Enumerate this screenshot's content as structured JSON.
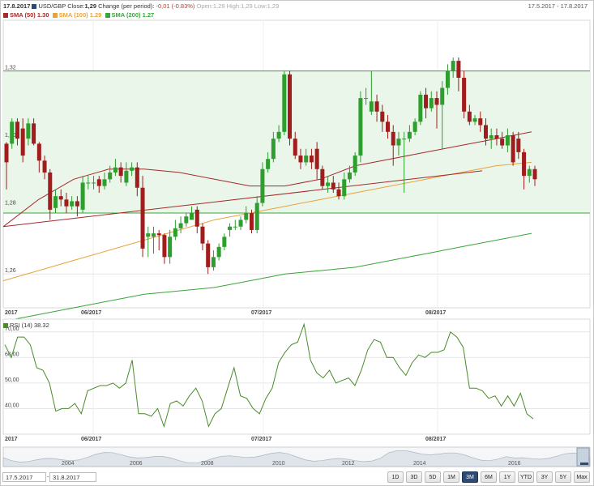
{
  "header": {
    "date": "17.8.2017",
    "symbol": "USD/GBP",
    "close_label": "Close:",
    "close_value": "1,29",
    "change_label": "Change (per period):",
    "change_value": "-0,01 (-0.83%)",
    "ohlc_text": "Open:1,29 High:1,29 Low:1,29",
    "date_range": "17.5.2017 - 17.8.2017",
    "sma50_label": "SMA (50) 1.30",
    "sma100_label": "SMA (100) 1.29",
    "sma200_label": "SMA (200) 1.27",
    "colors": {
      "symbol": "#2c4a73",
      "sma50": "#a52a2a",
      "sma100": "#e8a33d",
      "sma200": "#3aa53a"
    }
  },
  "rsi": {
    "label": "RSI (14) 38.32"
  },
  "controls": {
    "date_from": "17.5.2017",
    "separator": "-",
    "date_to": "31.8.2017",
    "buttons": [
      "1D",
      "3D",
      "5D",
      "1M",
      "3M",
      "6M",
      "1Y",
      "YTD",
      "3Y",
      "5Y",
      "Max"
    ],
    "active_button": "3M"
  },
  "navigator": {
    "year_labels": [
      "2004",
      "2006",
      "2008",
      "2010",
      "2012",
      "2014",
      "2016"
    ]
  },
  "chart_data": [
    {
      "type": "candlestick",
      "title": "USD/GBP",
      "ylim": [
        1.25,
        1.335
      ],
      "y_ticks": [
        "1,32",
        "1,30",
        "1,28",
        "1,26"
      ],
      "x_ticks": [
        "2017",
        "06/2017",
        "07/2017",
        "08/2017"
      ],
      "channel": [
        1.278,
        1.32
      ],
      "candles": [
        [
          1.2985,
          1.293,
          1.299,
          1.285
        ],
        [
          1.2985,
          1.305,
          1.306,
          1.297
        ],
        [
          1.305,
          1.3,
          1.306,
          1.298
        ],
        [
          1.303,
          1.295,
          1.306,
          1.293
        ],
        [
          1.3,
          1.3045,
          1.306,
          1.298
        ],
        [
          1.3045,
          1.2985,
          1.306,
          1.298
        ],
        [
          1.2985,
          1.2935,
          1.299,
          1.29
        ],
        [
          1.2935,
          1.29,
          1.295,
          1.288
        ],
        [
          1.29,
          1.279,
          1.291,
          1.276
        ],
        [
          1.2795,
          1.283,
          1.285,
          1.278
        ],
        [
          1.283,
          1.282,
          1.285,
          1.28
        ],
        [
          1.282,
          1.28,
          1.284,
          1.278
        ],
        [
          1.28,
          1.2815,
          1.283,
          1.279
        ],
        [
          1.2815,
          1.28,
          1.283,
          1.277
        ],
        [
          1.279,
          1.287,
          1.289,
          1.278
        ],
        [
          1.287,
          1.287,
          1.289,
          1.285
        ],
        [
          1.287,
          1.287,
          1.289,
          1.285
        ],
        [
          1.288,
          1.286,
          1.289,
          1.284
        ],
        [
          1.286,
          1.288,
          1.29,
          1.285
        ],
        [
          1.288,
          1.29,
          1.292,
          1.287
        ],
        [
          1.29,
          1.2915,
          1.294,
          1.289
        ],
        [
          1.2915,
          1.289,
          1.293,
          1.287
        ],
        [
          1.287,
          1.2905,
          1.293,
          1.286
        ],
        [
          1.2905,
          1.2915,
          1.293,
          1.289
        ],
        [
          1.2915,
          1.2855,
          1.293,
          1.283
        ],
        [
          1.2855,
          1.2675,
          1.289,
          1.265
        ],
        [
          1.271,
          1.272,
          1.274,
          1.265
        ],
        [
          1.271,
          1.272,
          1.274,
          1.266
        ],
        [
          1.272,
          1.2715,
          1.273,
          1.267
        ],
        [
          1.2715,
          1.265,
          1.272,
          1.263
        ],
        [
          1.265,
          1.271,
          1.273,
          1.263
        ],
        [
          1.271,
          1.2735,
          1.276,
          1.27
        ],
        [
          1.2735,
          1.275,
          1.277,
          1.272
        ],
        [
          1.275,
          1.277,
          1.278,
          1.274
        ],
        [
          1.276,
          1.278,
          1.28,
          1.276
        ],
        [
          1.279,
          1.274,
          1.28,
          1.272
        ],
        [
          1.274,
          1.269,
          1.275,
          1.267
        ],
        [
          1.269,
          1.262,
          1.27,
          1.26
        ],
        [
          1.262,
          1.265,
          1.267,
          1.261
        ],
        [
          1.265,
          1.268,
          1.269,
          1.264
        ],
        [
          1.268,
          1.271,
          1.272,
          1.267
        ],
        [
          1.273,
          1.274,
          1.275,
          1.271
        ],
        [
          1.274,
          1.274,
          1.276,
          1.273
        ],
        [
          1.274,
          1.276,
          1.277,
          1.273
        ],
        [
          1.276,
          1.278,
          1.28,
          1.275
        ],
        [
          1.278,
          1.273,
          1.279,
          1.272
        ],
        [
          1.273,
          1.281,
          1.283,
          1.272
        ],
        [
          1.281,
          1.291,
          1.293,
          1.28
        ],
        [
          1.291,
          1.294,
          1.296,
          1.29
        ],
        [
          1.294,
          1.3,
          1.302,
          1.293
        ],
        [
          1.3,
          1.302,
          1.304,
          1.299
        ],
        [
          1.302,
          1.319,
          1.32,
          1.301
        ],
        [
          1.319,
          1.3,
          1.32,
          1.298
        ],
        [
          1.3,
          1.295,
          1.302,
          1.294
        ],
        [
          1.295,
          1.293,
          1.297,
          1.291
        ],
        [
          1.293,
          1.295,
          1.297,
          1.292
        ],
        [
          1.295,
          1.293,
          1.297,
          1.291
        ],
        [
          1.297,
          1.291,
          1.299,
          1.288
        ],
        [
          1.291,
          1.286,
          1.292,
          1.285
        ],
        [
          1.286,
          1.287,
          1.289,
          1.284
        ],
        [
          1.287,
          1.285,
          1.289,
          1.284
        ],
        [
          1.285,
          1.283,
          1.287,
          1.282
        ],
        [
          1.283,
          1.288,
          1.29,
          1.282
        ],
        [
          1.288,
          1.29,
          1.292,
          1.287
        ],
        [
          1.29,
          1.295,
          1.296,
          1.289
        ],
        [
          1.295,
          1.312,
          1.314,
          1.293
        ],
        [
          1.312,
          1.312,
          1.315,
          1.31
        ],
        [
          1.308,
          1.311,
          1.32,
          1.307
        ],
        [
          1.311,
          1.308,
          1.313,
          1.305
        ],
        [
          1.308,
          1.305,
          1.31,
          1.302
        ],
        [
          1.305,
          1.302,
          1.307,
          1.3
        ],
        [
          1.302,
          1.298,
          1.304,
          1.292
        ],
        [
          1.298,
          1.3,
          1.302,
          1.295
        ],
        [
          1.3,
          1.3,
          1.302,
          1.284
        ],
        [
          1.3,
          1.302,
          1.304,
          1.299
        ],
        [
          1.302,
          1.305,
          1.306,
          1.301
        ],
        [
          1.305,
          1.313,
          1.314,
          1.304
        ],
        [
          1.313,
          1.309,
          1.315,
          1.306
        ],
        [
          1.309,
          1.312,
          1.314,
          1.308
        ],
        [
          1.312,
          1.31,
          1.314,
          1.303
        ],
        [
          1.31,
          1.315,
          1.317,
          1.297
        ],
        [
          1.315,
          1.32,
          1.322,
          1.313
        ],
        [
          1.32,
          1.323,
          1.324,
          1.318
        ],
        [
          1.323,
          1.318,
          1.324,
          1.314
        ],
        [
          1.318,
          1.308,
          1.32,
          1.306
        ],
        [
          1.308,
          1.305,
          1.31,
          1.304
        ],
        [
          1.305,
          1.306,
          1.307,
          1.304
        ],
        [
          1.306,
          1.304,
          1.308,
          1.302
        ],
        [
          1.304,
          1.3,
          1.306,
          1.298
        ],
        [
          1.3,
          1.301,
          1.303,
          1.297
        ],
        [
          1.301,
          1.3,
          1.303,
          1.298
        ],
        [
          1.3,
          1.298,
          1.302,
          1.297
        ],
        [
          1.298,
          1.301,
          1.303,
          1.296
        ],
        [
          1.301,
          1.293,
          1.302,
          1.292
        ],
        [
          1.3,
          1.296,
          1.302,
          1.294
        ],
        [
          1.296,
          1.289,
          1.297,
          1.285
        ],
        [
          1.289,
          1.291,
          1.292,
          1.287
        ],
        [
          1.291,
          1.288,
          1.292,
          1.286
        ]
      ],
      "series": [
        {
          "name": "SMA (50) 1.30",
          "color": "#a52a2a",
          "values": [
            1.274,
            1.282,
            1.288,
            1.291,
            1.291,
            1.29,
            1.288,
            1.286,
            1.286,
            1.288,
            1.292,
            1.294,
            1.296,
            1.298,
            1.3,
            1.302
          ]
        },
        {
          "name": "SMA (100) 1.29",
          "color": "#e8a33d",
          "values": [
            1.258,
            1.261,
            1.264,
            1.267,
            1.27,
            1.273,
            1.276,
            1.278,
            1.28,
            1.282,
            1.284,
            1.286,
            1.288,
            1.29,
            1.292,
            1.293
          ]
        },
        {
          "name": "SMA (200) 1.27",
          "color": "#3aa53a",
          "values": [
            1.246,
            1.248,
            1.25,
            1.252,
            1.254,
            1.255,
            1.256,
            1.258,
            1.26,
            1.261,
            1.262,
            1.264,
            1.266,
            1.268,
            1.27,
            1.272
          ]
        }
      ],
      "trendline": {
        "from": 1.274,
        "to": 1.2905,
        "color": "#a52a2a"
      }
    },
    {
      "type": "line",
      "title": "RSI (14) 38.32",
      "ylim": [
        30,
        75
      ],
      "y_ticks": [
        "70,00",
        "60,00",
        "50,00",
        "40,00"
      ],
      "x_ticks": [
        "2017",
        "06/2017",
        "07/2017",
        "08/2017"
      ],
      "series": [
        {
          "name": "RSI (14)",
          "color": "#4a8a2a",
          "values": [
            65,
            60,
            68,
            68,
            65,
            56,
            55,
            50,
            39,
            40,
            40,
            42,
            38,
            47,
            48,
            49,
            49,
            50,
            48,
            50,
            59,
            38,
            38,
            37,
            40,
            33,
            42,
            43,
            41,
            45,
            48,
            43,
            33,
            38,
            40,
            48,
            56,
            45,
            44,
            40,
            38,
            44,
            48,
            58,
            62,
            65,
            66,
            73,
            59,
            54,
            52,
            55,
            50,
            51,
            52,
            49,
            55,
            63,
            67,
            66,
            60,
            60,
            56,
            53,
            58,
            61,
            60,
            62,
            62,
            63,
            70,
            68,
            64,
            48,
            48,
            47,
            44,
            45,
            41,
            45,
            41,
            46,
            38,
            36
          ]
        }
      ]
    }
  ]
}
